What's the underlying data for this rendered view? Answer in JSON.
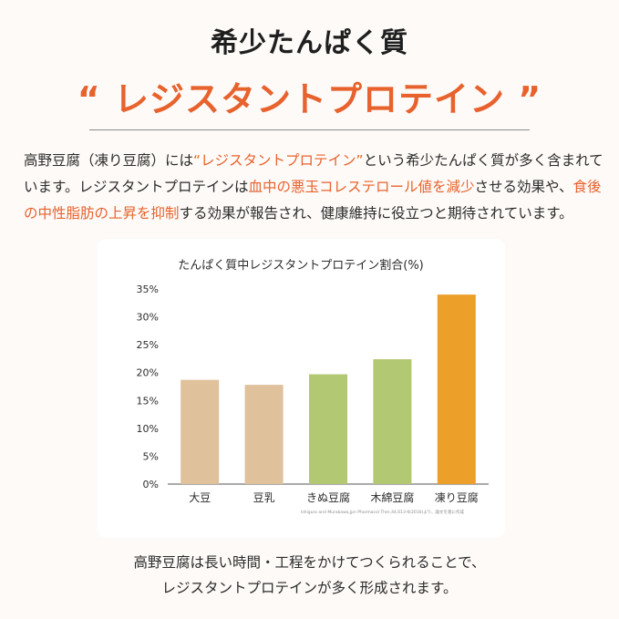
{
  "header": {
    "title": "希少たんぱく質",
    "subtitle": "“ レジスタントプロテイン ”"
  },
  "intro": {
    "p1": "高野豆腐（凍り豆腐）には",
    "h1": "“レジスタントプロテイン”",
    "p2": "という希少たんぱく質が多く含まれています。レジスタントプロテインは",
    "h2": "血中の悪玉コレステロール値を減少",
    "p3": "させる効果や、",
    "h3": "食後の中性脂肪の上昇を抑制",
    "p4": "する効果が報告され、健康維持に役立つと期待されています。"
  },
  "chart_data": {
    "type": "bar",
    "title": "たんぱく質中レジスタントプロテイン割合(%)",
    "categories": [
      "大豆",
      "豆乳",
      "きぬ豆腐",
      "木綿豆腐",
      "凍り豆腐"
    ],
    "values": [
      18.7,
      17.8,
      19.7,
      22.4,
      34.0
    ],
    "colors": [
      "#dfc19c",
      "#dfc19c",
      "#b2c872",
      "#b2c872",
      "#eca02a"
    ],
    "yticks": [
      "0%",
      "5%",
      "10%",
      "15%",
      "20%",
      "25%",
      "30%",
      "35%"
    ],
    "ylim": [
      0,
      35
    ],
    "xlabel": "",
    "ylabel": "",
    "grid": false,
    "source": "Ishiguro and Murakawa,Jpn Pharmacol Ther,44,613-6(2016)より、論文を基に作成"
  },
  "footer": {
    "line1": "高野豆腐は長い時間・工程をかけてつくられることで、",
    "line2": "レジスタントプロテインが多く形成されます。"
  }
}
